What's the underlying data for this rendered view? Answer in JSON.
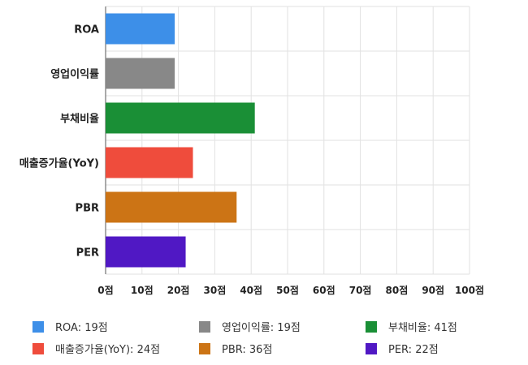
{
  "chart_data": {
    "type": "bar",
    "orientation": "horizontal",
    "title": "",
    "xlabel": "",
    "ylabel": "",
    "categories": [
      "ROA",
      "영업이익률",
      "부채비율",
      "매출증가율(YoY)",
      "PBR",
      "PER"
    ],
    "values": [
      19,
      19,
      41,
      24,
      36,
      22
    ],
    "colors": [
      "#3d8fe8",
      "#888888",
      "#1a8f36",
      "#ef4c3c",
      "#cc7415",
      "#5018c4"
    ],
    "xlim": [
      0,
      100
    ],
    "xticks": [
      "0점",
      "10점",
      "20점",
      "30점",
      "40점",
      "50점",
      "60점",
      "70점",
      "80점",
      "90점",
      "100점"
    ],
    "grid": true,
    "legend_position": "bottom",
    "legend": [
      "ROA: 19점",
      "영업이익률: 19점",
      "부채비율: 41점",
      "매출증가율(YoY): 24점",
      "PBR: 36점",
      "PER: 22점"
    ]
  }
}
